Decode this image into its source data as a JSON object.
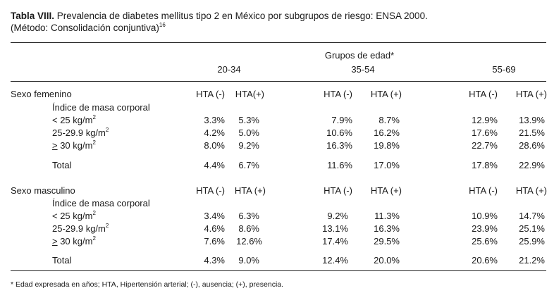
{
  "title": {
    "bold": "Tabla VIII.",
    "text": " Prevalencia de diabetes mellitus tipo 2 en México por subgrupos de riesgo: ENSA 2000.",
    "line2": "(Método: Consolidación conjuntiva)",
    "ref": "16"
  },
  "header": {
    "group_label": "Grupos de edad*",
    "ages": [
      "20-34",
      "35-54",
      "55-69"
    ]
  },
  "imc_label": "Índice de masa corporal",
  "total_label": "Total",
  "rows_labels": {
    "r1_pre": "< 25 kg/m",
    "r2_pre": "25-29.9 kg/m",
    "r3_geq": ">",
    "r3_pre": " 30 kg/m",
    "sq": "2"
  },
  "sections": [
    {
      "label": "Sexo femenino",
      "hta": [
        "HTA (-)",
        "HTA(+)",
        "HTA (-)",
        "HTA (+)",
        "HTA (-)",
        "HTA (+)"
      ],
      "rows": [
        [
          "3.3%",
          "5.3%",
          "7.9%",
          "8.7%",
          "12.9%",
          "13.9%"
        ],
        [
          "4.2%",
          "5.0%",
          "10.6%",
          "16.2%",
          "17.6%",
          "21.5%"
        ],
        [
          "8.0%",
          "9.2%",
          "16.3%",
          "19.8%",
          "22.7%",
          "28.6%"
        ]
      ],
      "total": [
        "4.4%",
        "6.7%",
        "11.6%",
        "17.0%",
        "17.8%",
        "22.9%"
      ]
    },
    {
      "label": "Sexo masculino",
      "hta": [
        "HTA (-)",
        "HTA (+)",
        "HTA (-)",
        "HTA (+)",
        "HTA (-)",
        "HTA (+)"
      ],
      "rows": [
        [
          "3.4%",
          "6.3%",
          "9.2%",
          "11.3%",
          "10.9%",
          "14.7%"
        ],
        [
          "4.6%",
          "8.6%",
          "13.1%",
          "16.3%",
          "23.9%",
          "25.1%"
        ],
        [
          "7.6%",
          "12.6%",
          "17.4%",
          "29.5%",
          "25.6%",
          "25.9%"
        ]
      ],
      "total": [
        "4.3%",
        "9.0%",
        "12.4%",
        "20.0%",
        "20.6%",
        "21.2%"
      ]
    }
  ],
  "footnote": "* Edad expresada en años; HTA, Hipertensión arterial; (-), ausencia; (+), presencia."
}
